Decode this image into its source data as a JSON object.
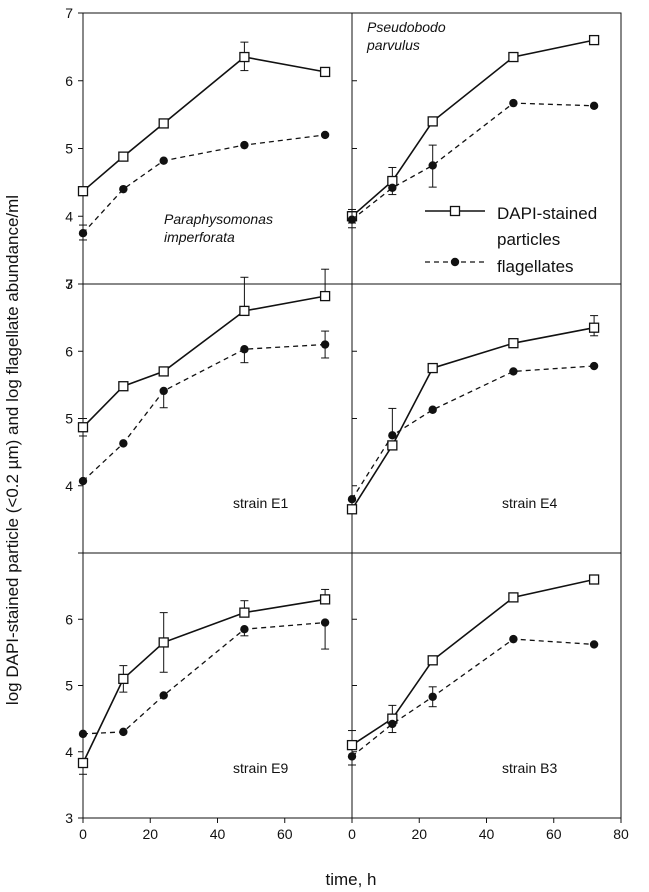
{
  "figure": {
    "xlabel": "time, h",
    "ylabel": "log DAPI-stained particle (<0.2 µm) and log flagellate abundance/ml"
  },
  "legend": {
    "entries": [
      {
        "label_lines": [
          "DAPI-stained",
          "particles"
        ],
        "series": "DAPI-stained particles",
        "marker": "open-square",
        "line": "solid"
      },
      {
        "label_lines": [
          "flagellates"
        ],
        "series": "flagellates",
        "marker": "filled-circle",
        "line": "dashed"
      }
    ]
  },
  "chart_data": [
    {
      "type": "line",
      "panel": "top-left",
      "label_lines": [
        "Paraphysomonas",
        "imperforata"
      ],
      "label_style": "italic",
      "label_position": "lower-left",
      "xlim": [
        0,
        80
      ],
      "ylim": [
        3,
        7
      ],
      "xticks": [
        "0",
        "20",
        "40",
        "60"
      ],
      "yticks": [
        "3",
        "4",
        "5",
        "6",
        "7"
      ],
      "series": [
        {
          "name": "DAPI-stained particles",
          "x": [
            0,
            12,
            24,
            48,
            72
          ],
          "y": [
            4.37,
            4.88,
            5.37,
            6.35,
            6.13
          ],
          "err_up": [
            0,
            0,
            0,
            0.22,
            0
          ],
          "err_down": [
            0,
            0,
            0,
            0.2,
            0
          ]
        },
        {
          "name": "flagellates",
          "x": [
            0,
            12,
            24,
            48,
            72
          ],
          "y": [
            3.75,
            4.4,
            4.82,
            5.05,
            5.2
          ],
          "err_up": [
            0.12,
            0,
            0,
            0,
            0
          ],
          "err_down": [
            0.1,
            0,
            0,
            0,
            0
          ]
        }
      ]
    },
    {
      "type": "line",
      "panel": "top-right",
      "label_lines": [
        "Pseudobodo",
        "parvulus"
      ],
      "label_style": "italic",
      "label_position": "top-left",
      "xlim": [
        0,
        80
      ],
      "ylim": [
        3,
        7
      ],
      "series": [
        {
          "name": "DAPI-stained particles",
          "x": [
            0,
            12,
            24,
            48,
            72
          ],
          "y": [
            4.0,
            4.52,
            5.4,
            6.35,
            6.6
          ],
          "err_up": [
            0.1,
            0.2,
            0,
            0,
            0
          ],
          "err_down": [
            0.1,
            0,
            0,
            0,
            0
          ]
        },
        {
          "name": "flagellates",
          "x": [
            0,
            12,
            24,
            48,
            72
          ],
          "y": [
            3.95,
            4.42,
            4.75,
            5.67,
            5.63
          ],
          "err_up": [
            0.12,
            0,
            0.3,
            0,
            0
          ],
          "err_down": [
            0.12,
            0.1,
            0.32,
            0,
            0
          ]
        }
      ]
    },
    {
      "type": "line",
      "panel": "middle-left",
      "label_lines": [
        "strain  E1"
      ],
      "label_style": "normal",
      "label_position": "bottom",
      "xlim": [
        0,
        80
      ],
      "ylim": [
        3,
        7
      ],
      "yticks": [
        "4",
        "5",
        "6",
        "7"
      ],
      "series": [
        {
          "name": "DAPI-stained particles",
          "x": [
            0,
            12,
            24,
            48,
            72
          ],
          "y": [
            4.87,
            5.48,
            5.7,
            6.6,
            6.82
          ],
          "err_up": [
            0.13,
            0,
            0,
            0.5,
            0.4
          ],
          "err_down": [
            0.13,
            0,
            0,
            0,
            0
          ]
        },
        {
          "name": "flagellates",
          "x": [
            0,
            12,
            24,
            48,
            72
          ],
          "y": [
            4.07,
            4.63,
            5.41,
            6.03,
            6.1
          ],
          "err_up": [
            0,
            0,
            0,
            0,
            0.2
          ],
          "err_down": [
            0,
            0,
            0.25,
            0.2,
            0.2
          ]
        }
      ]
    },
    {
      "type": "line",
      "panel": "middle-right",
      "label_lines": [
        "strain  E4"
      ],
      "label_style": "normal",
      "label_position": "bottom",
      "xlim": [
        0,
        80
      ],
      "ylim": [
        3,
        7
      ],
      "series": [
        {
          "name": "DAPI-stained particles",
          "x": [
            0,
            12,
            24,
            48,
            72
          ],
          "y": [
            3.65,
            4.6,
            5.75,
            6.12,
            6.35
          ],
          "err_up": [
            0,
            0,
            0,
            0,
            0.18
          ],
          "err_down": [
            0,
            0,
            0,
            0,
            0.12
          ]
        },
        {
          "name": "flagellates",
          "x": [
            0,
            12,
            24,
            48,
            72
          ],
          "y": [
            3.8,
            4.75,
            5.13,
            5.7,
            5.78
          ],
          "err_up": [
            0,
            0.4,
            0,
            0,
            0
          ],
          "err_down": [
            0,
            0,
            0,
            0,
            0
          ]
        }
      ]
    },
    {
      "type": "line",
      "panel": "bottom-left",
      "label_lines": [
        "strain  E9"
      ],
      "label_style": "normal",
      "label_position": "bottom",
      "xlim": [
        0,
        80
      ],
      "ylim": [
        3,
        7
      ],
      "xticks": [
        "0",
        "20",
        "40",
        "60"
      ],
      "yticks": [
        "3",
        "4",
        "5",
        "6"
      ],
      "series": [
        {
          "name": "DAPI-stained particles",
          "x": [
            0,
            12,
            24,
            48,
            72
          ],
          "y": [
            3.83,
            5.1,
            5.65,
            6.1,
            6.3
          ],
          "err_up": [
            0,
            0.2,
            0.45,
            0.18,
            0.15
          ],
          "err_down": [
            0.17,
            0.2,
            0.45,
            0,
            0
          ]
        },
        {
          "name": "flagellates",
          "x": [
            0,
            12,
            24,
            48,
            72
          ],
          "y": [
            4.27,
            4.3,
            4.85,
            5.85,
            5.95
          ],
          "err_up": [
            0,
            0,
            0,
            0,
            0
          ],
          "err_down": [
            0,
            0,
            0,
            0.1,
            0.4
          ]
        }
      ]
    },
    {
      "type": "line",
      "panel": "bottom-right",
      "label_lines": [
        "strain  B3"
      ],
      "label_style": "normal",
      "label_position": "bottom",
      "xlim": [
        0,
        80
      ],
      "ylim": [
        3,
        7
      ],
      "xticks": [
        "0",
        "20",
        "40",
        "60",
        "80"
      ],
      "series": [
        {
          "name": "DAPI-stained particles",
          "x": [
            0,
            12,
            24,
            48,
            72
          ],
          "y": [
            4.1,
            4.5,
            5.38,
            6.33,
            6.6
          ],
          "err_up": [
            0.22,
            0.2,
            0,
            0,
            0
          ],
          "err_down": [
            0,
            0,
            0,
            0,
            0
          ]
        },
        {
          "name": "flagellates",
          "x": [
            0,
            12,
            24,
            48,
            72
          ],
          "y": [
            3.93,
            4.42,
            4.83,
            5.7,
            5.62
          ],
          "err_up": [
            0,
            0,
            0.15,
            0,
            0
          ],
          "err_down": [
            0.13,
            0.13,
            0.15,
            0,
            0
          ]
        }
      ]
    }
  ]
}
